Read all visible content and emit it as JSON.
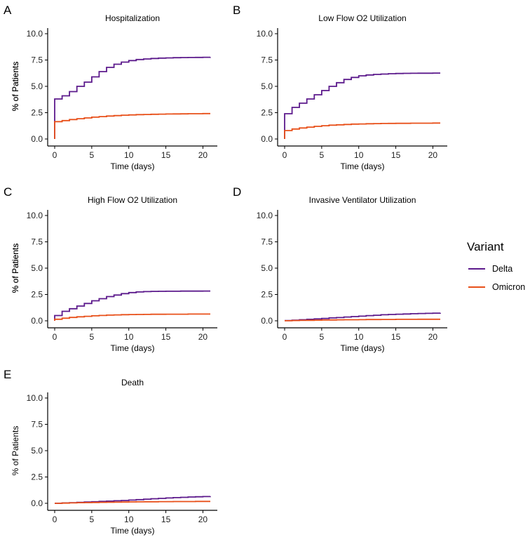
{
  "legend": {
    "title": "Variant",
    "items": [
      {
        "name": "Delta",
        "color": "#5c1a8c"
      },
      {
        "name": "Omicron",
        "color": "#e8501a"
      }
    ]
  },
  "chart_data": [
    {
      "panel_label": "A",
      "type": "line",
      "step": true,
      "title": "Hospitalization",
      "xlabel": "Time (days)",
      "ylabel": "% of Patients",
      "xlim": [
        0,
        21
      ],
      "ylim": [
        0,
        10
      ],
      "x_ticks": [
        0,
        5,
        10,
        15,
        20
      ],
      "y_ticks": [
        "0.0",
        "2.5",
        "5.0",
        "7.5",
        "10.0"
      ],
      "series": [
        {
          "name": "Delta",
          "x": [
            0,
            0,
            1,
            2,
            3,
            4,
            5,
            6,
            7,
            8,
            9,
            10,
            11,
            12,
            13,
            14,
            15,
            16,
            17,
            18,
            19,
            20,
            21
          ],
          "y": [
            0,
            3.8,
            4.1,
            4.5,
            5.0,
            5.4,
            5.9,
            6.4,
            6.8,
            7.1,
            7.3,
            7.45,
            7.55,
            7.6,
            7.65,
            7.68,
            7.7,
            7.72,
            7.73,
            7.74,
            7.75,
            7.76,
            7.77
          ]
        },
        {
          "name": "Omicron",
          "x": [
            0,
            0,
            1,
            2,
            3,
            4,
            5,
            6,
            7,
            8,
            9,
            10,
            11,
            12,
            13,
            14,
            15,
            16,
            17,
            18,
            19,
            20,
            21
          ],
          "y": [
            0,
            1.65,
            1.75,
            1.85,
            1.93,
            2.0,
            2.07,
            2.13,
            2.18,
            2.22,
            2.26,
            2.29,
            2.31,
            2.33,
            2.35,
            2.36,
            2.37,
            2.38,
            2.39,
            2.4,
            2.4,
            2.41,
            2.41
          ]
        }
      ]
    },
    {
      "panel_label": "B",
      "type": "line",
      "step": true,
      "title": "Low Flow O2 Utilization",
      "xlabel": "Time (days)",
      "ylabel": "% of Patients",
      "xlim": [
        0,
        21
      ],
      "ylim": [
        0,
        10
      ],
      "x_ticks": [
        0,
        5,
        10,
        15,
        20
      ],
      "y_ticks": [
        "0.0",
        "2.5",
        "5.0",
        "7.5",
        "10.0"
      ],
      "series": [
        {
          "name": "Delta",
          "x": [
            0,
            0,
            1,
            2,
            3,
            4,
            5,
            6,
            7,
            8,
            9,
            10,
            11,
            12,
            13,
            14,
            15,
            16,
            17,
            18,
            19,
            20,
            21
          ],
          "y": [
            0,
            2.4,
            3.0,
            3.4,
            3.8,
            4.2,
            4.6,
            5.0,
            5.35,
            5.65,
            5.85,
            6.0,
            6.08,
            6.13,
            6.17,
            6.2,
            6.22,
            6.23,
            6.24,
            6.25,
            6.25,
            6.26,
            6.26
          ]
        },
        {
          "name": "Omicron",
          "x": [
            0,
            0,
            1,
            2,
            3,
            4,
            5,
            6,
            7,
            8,
            9,
            10,
            11,
            12,
            13,
            14,
            15,
            16,
            17,
            18,
            19,
            20,
            21
          ],
          "y": [
            0,
            0.8,
            0.95,
            1.05,
            1.13,
            1.2,
            1.26,
            1.31,
            1.35,
            1.38,
            1.41,
            1.43,
            1.45,
            1.46,
            1.47,
            1.48,
            1.49,
            1.49,
            1.5,
            1.5,
            1.5,
            1.51,
            1.51
          ]
        }
      ]
    },
    {
      "panel_label": "C",
      "type": "line",
      "step": true,
      "title": "High Flow O2 Utilization",
      "xlabel": "Time (days)",
      "ylabel": "% of Patients",
      "xlim": [
        0,
        21
      ],
      "ylim": [
        0,
        10
      ],
      "x_ticks": [
        0,
        5,
        10,
        15,
        20
      ],
      "y_ticks": [
        "0.0",
        "2.5",
        "5.0",
        "7.5",
        "10.0"
      ],
      "series": [
        {
          "name": "Delta",
          "x": [
            0,
            0,
            1,
            2,
            3,
            4,
            5,
            6,
            7,
            8,
            9,
            10,
            11,
            12,
            13,
            14,
            15,
            16,
            17,
            18,
            19,
            20,
            21
          ],
          "y": [
            0,
            0.5,
            0.9,
            1.15,
            1.4,
            1.65,
            1.9,
            2.1,
            2.3,
            2.45,
            2.58,
            2.68,
            2.74,
            2.77,
            2.79,
            2.8,
            2.81,
            2.81,
            2.82,
            2.82,
            2.82,
            2.83,
            2.83
          ]
        },
        {
          "name": "Omicron",
          "x": [
            0,
            0,
            1,
            2,
            3,
            4,
            5,
            6,
            7,
            8,
            9,
            10,
            11,
            12,
            13,
            14,
            15,
            16,
            17,
            18,
            19,
            20,
            21
          ],
          "y": [
            0,
            0.15,
            0.25,
            0.32,
            0.38,
            0.43,
            0.47,
            0.51,
            0.54,
            0.56,
            0.58,
            0.59,
            0.6,
            0.61,
            0.62,
            0.62,
            0.63,
            0.63,
            0.63,
            0.64,
            0.64,
            0.64,
            0.64
          ]
        }
      ]
    },
    {
      "panel_label": "D",
      "type": "line",
      "step": true,
      "title": "Invasive Ventilator Utilization",
      "xlabel": "Time (days)",
      "ylabel": "% of Patients",
      "xlim": [
        0,
        21
      ],
      "ylim": [
        0,
        10
      ],
      "x_ticks": [
        0,
        5,
        10,
        15,
        20
      ],
      "y_ticks": [
        "0.0",
        "2.5",
        "5.0",
        "7.5",
        "10.0"
      ],
      "series": [
        {
          "name": "Delta",
          "x": [
            0,
            1,
            2,
            3,
            4,
            5,
            6,
            7,
            8,
            9,
            10,
            11,
            12,
            13,
            14,
            15,
            16,
            17,
            18,
            19,
            20,
            21
          ],
          "y": [
            0.02,
            0.06,
            0.1,
            0.14,
            0.18,
            0.22,
            0.27,
            0.31,
            0.36,
            0.4,
            0.44,
            0.49,
            0.53,
            0.57,
            0.6,
            0.63,
            0.65,
            0.67,
            0.69,
            0.71,
            0.73,
            0.75
          ]
        },
        {
          "name": "Omicron",
          "x": [
            0,
            1,
            2,
            3,
            4,
            5,
            6,
            7,
            8,
            9,
            10,
            11,
            12,
            13,
            14,
            15,
            16,
            17,
            18,
            19,
            20,
            21
          ],
          "y": [
            0.01,
            0.03,
            0.04,
            0.05,
            0.06,
            0.07,
            0.08,
            0.09,
            0.1,
            0.1,
            0.11,
            0.12,
            0.12,
            0.13,
            0.13,
            0.14,
            0.14,
            0.14,
            0.15,
            0.15,
            0.15,
            0.15
          ]
        }
      ]
    },
    {
      "panel_label": "E",
      "type": "line",
      "step": true,
      "title": "Death",
      "xlabel": "Time (days)",
      "ylabel": "% of Patients",
      "xlim": [
        0,
        21
      ],
      "ylim": [
        0,
        10
      ],
      "x_ticks": [
        0,
        5,
        10,
        15,
        20
      ],
      "y_ticks": [
        "0.0",
        "2.5",
        "5.0",
        "7.5",
        "10.0"
      ],
      "series": [
        {
          "name": "Delta",
          "x": [
            0,
            1,
            2,
            3,
            4,
            5,
            6,
            7,
            8,
            9,
            10,
            11,
            12,
            13,
            14,
            15,
            16,
            17,
            18,
            19,
            20,
            21
          ],
          "y": [
            0.0,
            0.03,
            0.06,
            0.09,
            0.12,
            0.15,
            0.18,
            0.21,
            0.24,
            0.27,
            0.31,
            0.35,
            0.39,
            0.43,
            0.47,
            0.51,
            0.54,
            0.57,
            0.6,
            0.62,
            0.64,
            0.66
          ]
        },
        {
          "name": "Omicron",
          "x": [
            0,
            1,
            2,
            3,
            4,
            5,
            6,
            7,
            8,
            9,
            10,
            11,
            12,
            13,
            14,
            15,
            16,
            17,
            18,
            19,
            20,
            21
          ],
          "y": [
            0.0,
            0.02,
            0.04,
            0.06,
            0.07,
            0.08,
            0.09,
            0.1,
            0.11,
            0.12,
            0.13,
            0.14,
            0.15,
            0.15,
            0.16,
            0.16,
            0.17,
            0.17,
            0.17,
            0.18,
            0.18,
            0.18
          ]
        }
      ]
    }
  ]
}
